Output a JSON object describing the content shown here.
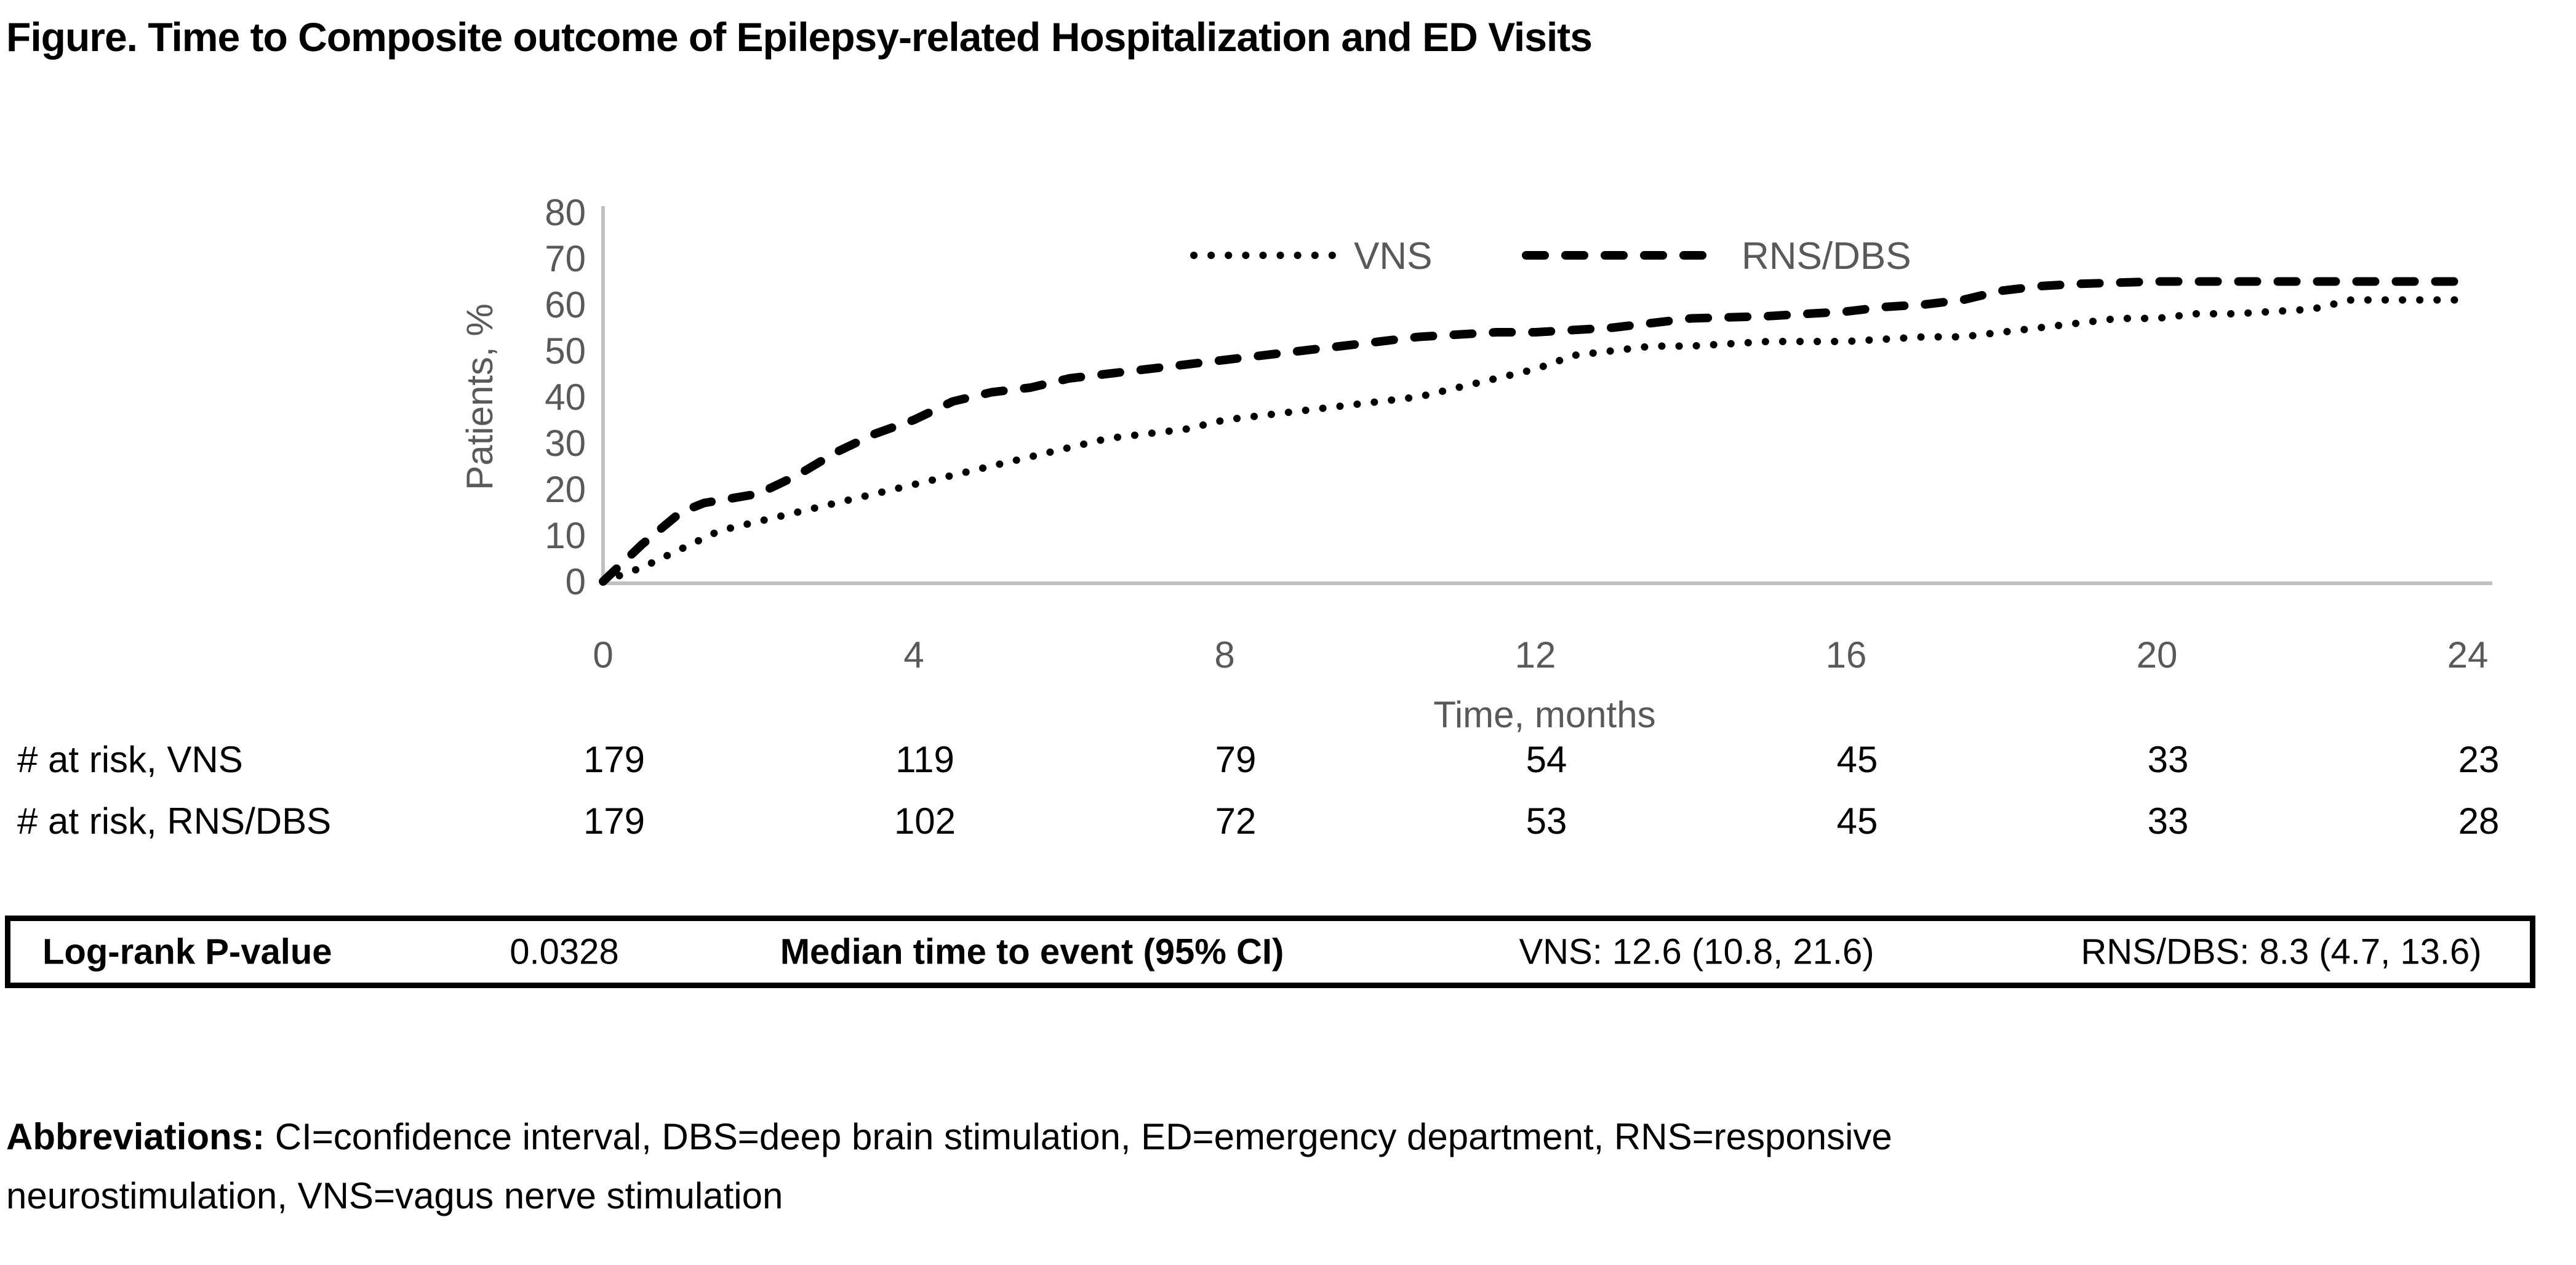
{
  "figure": {
    "title": "Figure. Time to Composite outcome of Epilepsy-related Hospitalization and ED Visits"
  },
  "chart_data": {
    "type": "line",
    "title": "",
    "xlabel": "Time, months",
    "ylabel": "Patients, %",
    "xlim": [
      0,
      24
    ],
    "ylim": [
      0,
      80
    ],
    "x_ticks": [
      0,
      4,
      8,
      12,
      16,
      20,
      24
    ],
    "y_ticks": [
      0,
      10,
      20,
      30,
      40,
      50,
      60,
      70,
      80
    ],
    "grid": false,
    "legend_position": "top-center-inside",
    "series": [
      {
        "name": "VNS",
        "style": "dotted",
        "color": "#000000",
        "points": [
          [
            0,
            0
          ],
          [
            0.5,
            3
          ],
          [
            1,
            7
          ],
          [
            1.5,
            11
          ],
          [
            2,
            13
          ],
          [
            2.5,
            15
          ],
          [
            3,
            17
          ],
          [
            3.5,
            19
          ],
          [
            4,
            21
          ],
          [
            4.5,
            23
          ],
          [
            5,
            25
          ],
          [
            5.5,
            27
          ],
          [
            6,
            29
          ],
          [
            6.5,
            31
          ],
          [
            7,
            32
          ],
          [
            7.5,
            33
          ],
          [
            8,
            35
          ],
          [
            8.5,
            36
          ],
          [
            9,
            37
          ],
          [
            9.5,
            38
          ],
          [
            10,
            39
          ],
          [
            10.5,
            40
          ],
          [
            11,
            42
          ],
          [
            11.5,
            44
          ],
          [
            12,
            46
          ],
          [
            12.5,
            49
          ],
          [
            13,
            50
          ],
          [
            13.5,
            51
          ],
          [
            14,
            51
          ],
          [
            15,
            52
          ],
          [
            16,
            52
          ],
          [
            17,
            53
          ],
          [
            17.5,
            53
          ],
          [
            18,
            54
          ],
          [
            18.5,
            55
          ],
          [
            19,
            56
          ],
          [
            19.5,
            57
          ],
          [
            20,
            57
          ],
          [
            20.5,
            58
          ],
          [
            21,
            58
          ],
          [
            22,
            59
          ],
          [
            22.5,
            61
          ],
          [
            23,
            61
          ],
          [
            24,
            61
          ]
        ]
      },
      {
        "name": "RNS/DBS",
        "style": "dashed",
        "color": "#000000",
        "points": [
          [
            0,
            0
          ],
          [
            0.5,
            8
          ],
          [
            1,
            15
          ],
          [
            1.3,
            17
          ],
          [
            2,
            19
          ],
          [
            2.5,
            23
          ],
          [
            3,
            28
          ],
          [
            3.5,
            32
          ],
          [
            4,
            35
          ],
          [
            4.5,
            39
          ],
          [
            5,
            41
          ],
          [
            5.5,
            42
          ],
          [
            6,
            44
          ],
          [
            6.5,
            45
          ],
          [
            7,
            46
          ],
          [
            7.5,
            47
          ],
          [
            8,
            48
          ],
          [
            8.5,
            49
          ],
          [
            9,
            50
          ],
          [
            9.5,
            51
          ],
          [
            10,
            52
          ],
          [
            10.5,
            53
          ],
          [
            11,
            53.5
          ],
          [
            11.5,
            54
          ],
          [
            12,
            54
          ],
          [
            12.5,
            54.5
          ],
          [
            13,
            55
          ],
          [
            13.5,
            56
          ],
          [
            14,
            57
          ],
          [
            15,
            57.5
          ],
          [
            15.5,
            58
          ],
          [
            16,
            58.5
          ],
          [
            16.5,
            59.5
          ],
          [
            17,
            60
          ],
          [
            17.5,
            61
          ],
          [
            18,
            63
          ],
          [
            18.5,
            64
          ],
          [
            19,
            64.5
          ],
          [
            20,
            65
          ],
          [
            21,
            65
          ],
          [
            22,
            65
          ],
          [
            23,
            65
          ],
          [
            24,
            65
          ]
        ]
      }
    ],
    "at_risk": {
      "time_points": [
        0,
        4,
        8,
        12,
        16,
        20,
        24
      ],
      "rows": [
        {
          "label": "# at risk, VNS",
          "values": [
            "179",
            "119",
            "79",
            "54",
            "45",
            "33",
            "23"
          ]
        },
        {
          "label": "# at risk, RNS/DBS",
          "values": [
            "179",
            "102",
            "72",
            "53",
            "45",
            "33",
            "28"
          ]
        }
      ]
    }
  },
  "stats_bar": {
    "logrank_label": "Log-rank P-value",
    "p_value": "0.0328",
    "median_label": "Median time to event (95% CI)",
    "vns_value": "VNS: 12.6 (10.8, 21.6)",
    "rns_dbs_value": "RNS/DBS: 8.3 (4.7, 13.6)"
  },
  "abbreviations": {
    "label": "Abbreviations:",
    "line1_rest": " CI=confidence interval, DBS=deep brain stimulation, ED=emergency department, RNS=responsive",
    "line2": "neurostimulation, VNS=vagus nerve stimulation"
  },
  "colors": {
    "axis_line": "#BFBFBF",
    "axis_text": "#595959",
    "series_color": "#000000",
    "risk_text": "#000000",
    "border": "#000000"
  }
}
